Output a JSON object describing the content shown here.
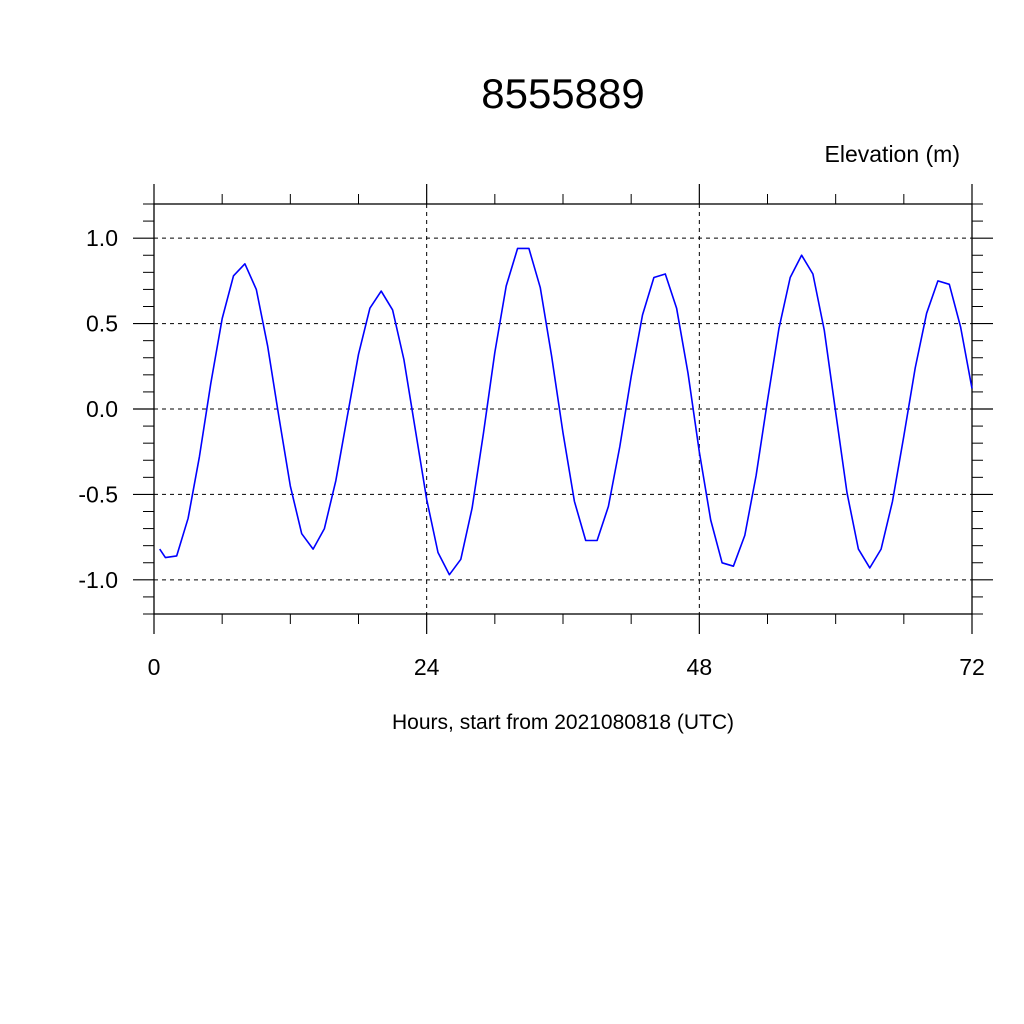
{
  "chart_data": {
    "type": "line",
    "title": "8555889",
    "ylabel": "Elevation (m)",
    "xlabel": "Hours, start from 2021080818 (UTC)",
    "xlim": [
      0,
      72
    ],
    "ylim": [
      -1.2,
      1.2
    ],
    "x_ticks": [
      0,
      24,
      48,
      72
    ],
    "x_tick_labels": [
      "0",
      "24",
      "48",
      "72"
    ],
    "x_minor_step": 6,
    "y_ticks": [
      1.0,
      0.5,
      0.0,
      -0.5,
      -1.0
    ],
    "y_tick_labels": [
      "1.0",
      "0.5",
      "0.0",
      "-0.5",
      "-1.0"
    ],
    "y_minor_step": 0.1,
    "grid": "dashed at major ticks",
    "line_color": "#0000ff",
    "series": [
      {
        "x": [
          0.5,
          1,
          2,
          3,
          4,
          5,
          6,
          7,
          8,
          9,
          10,
          11,
          12,
          13,
          14,
          15,
          16,
          17,
          18,
          19,
          20,
          21,
          22,
          23,
          24,
          25,
          26,
          27,
          28,
          29,
          30,
          31,
          32,
          33,
          34,
          35,
          36,
          37,
          38,
          39,
          40,
          41,
          42,
          43,
          44,
          45,
          46,
          47,
          48,
          49,
          50,
          51,
          52,
          53,
          54,
          55,
          56,
          57,
          58,
          59,
          60,
          61,
          62,
          63,
          64,
          65,
          66,
          67,
          68,
          69,
          70,
          71,
          72
        ],
        "y": [
          -0.82,
          -0.87,
          -0.86,
          -0.64,
          -0.28,
          0.15,
          0.53,
          0.78,
          0.85,
          0.7,
          0.37,
          -0.05,
          -0.45,
          -0.73,
          -0.82,
          -0.7,
          -0.42,
          -0.05,
          0.32,
          0.59,
          0.69,
          0.58,
          0.29,
          -0.12,
          -0.53,
          -0.84,
          -0.97,
          -0.88,
          -0.58,
          -0.14,
          0.33,
          0.72,
          0.94,
          0.94,
          0.71,
          0.31,
          -0.14,
          -0.54,
          -0.77,
          -0.77,
          -0.57,
          -0.22,
          0.19,
          0.55,
          0.77,
          0.79,
          0.59,
          0.21,
          -0.25,
          -0.65,
          -0.9,
          -0.92,
          -0.74,
          -0.39,
          0.05,
          0.47,
          0.77,
          0.9,
          0.79,
          0.46,
          -0.02,
          -0.49,
          -0.82,
          -0.93,
          -0.82,
          -0.54,
          -0.16,
          0.24,
          0.56,
          0.75,
          0.73,
          0.48,
          0.12
        ]
      }
    ]
  }
}
